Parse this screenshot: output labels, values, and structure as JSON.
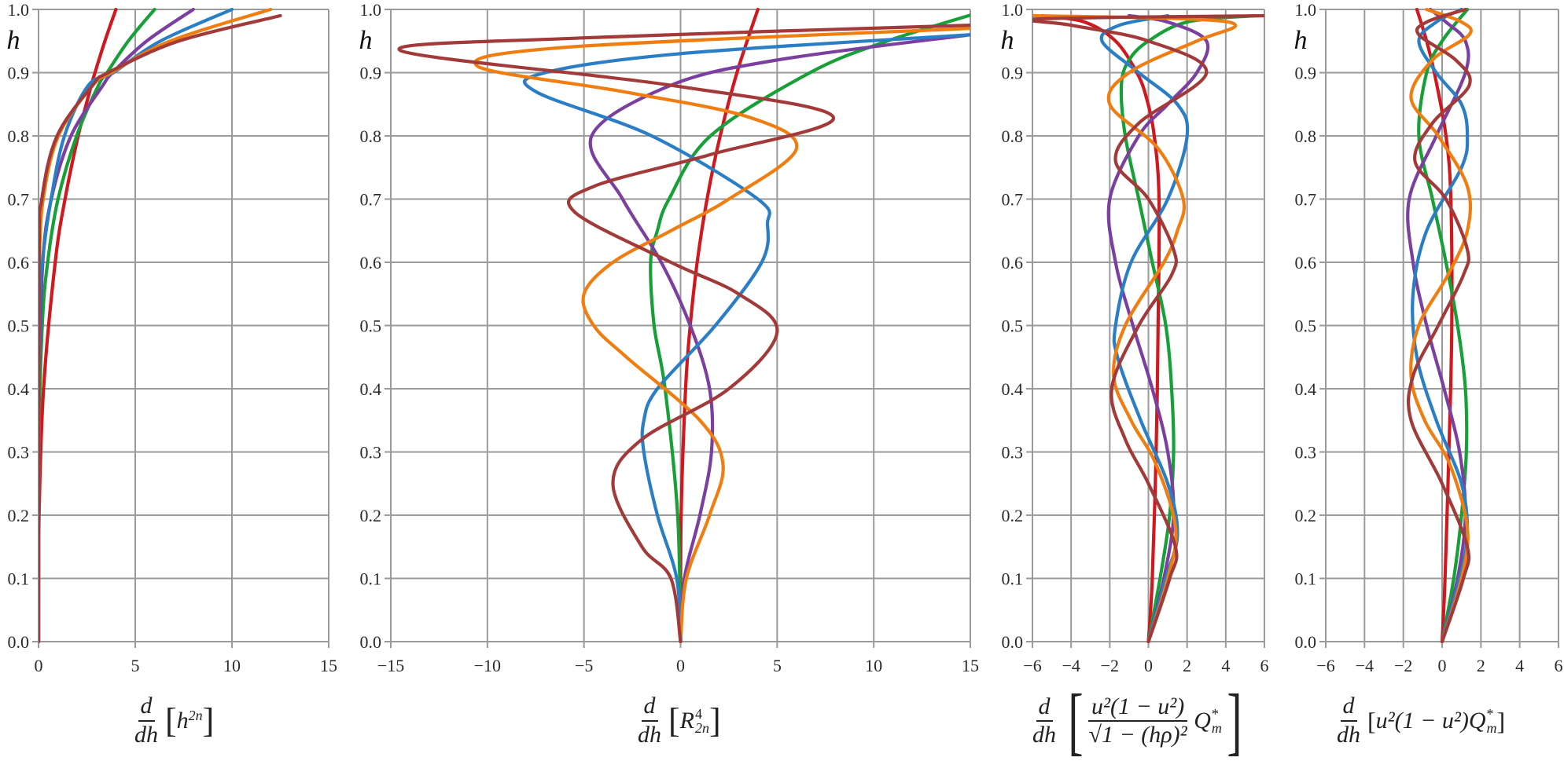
{
  "figure": {
    "y_axis_label": "h",
    "colors": {
      "red": "#d0191f",
      "green": "#18a038",
      "purple": "#7b3fa0",
      "blue": "#2a7ec6",
      "orange": "#f07d10",
      "brown": "#a33a3a"
    },
    "series_order": [
      "red",
      "green",
      "purple",
      "blue",
      "orange",
      "brown"
    ]
  },
  "panels": [
    {
      "id": "p1",
      "xlabel": {
        "numerator": "d",
        "denominator": "dh",
        "body": "h",
        "sup": "2n"
      },
      "x_ticks": [
        "0",
        "5",
        "10",
        "15"
      ],
      "y_ticks": [
        "0.0",
        "0.1",
        "0.2",
        "0.3",
        "0.4",
        "0.5",
        "0.6",
        "0.7",
        "0.8",
        "0.9",
        "1.0"
      ]
    },
    {
      "id": "p2",
      "xlabel": {
        "numerator": "d",
        "denominator": "dh",
        "body": "R",
        "sup": "4",
        "sub": "2n"
      },
      "x_ticks": [
        "−15",
        "−10",
        "−5",
        "0",
        "5",
        "10",
        "15"
      ],
      "y_ticks": [
        "0.0",
        "0.1",
        "0.2",
        "0.3",
        "0.4",
        "0.5",
        "0.6",
        "0.7",
        "0.8",
        "0.9",
        "1.0"
      ]
    },
    {
      "id": "p3",
      "xlabel": {
        "numerator": "d",
        "denominator": "dh",
        "inner_num": "u²(1 − u²)",
        "inner_den": "√1 − (hρ)²",
        "tail": "Q",
        "tail_sup": "*",
        "tail_sub": "m"
      },
      "x_ticks": [
        "−6",
        "−4",
        "−2",
        "0",
        "2",
        "4",
        "6"
      ],
      "y_ticks": [
        "0.0",
        "0.1",
        "0.2",
        "0.3",
        "0.4",
        "0.5",
        "0.6",
        "0.7",
        "0.8",
        "0.9",
        "1.0"
      ]
    },
    {
      "id": "p4",
      "xlabel": {
        "numerator": "d",
        "denominator": "dh",
        "body": "u²(1 − u²) ",
        "tail": "Q",
        "tail_sup": "*",
        "tail_sub": "m"
      },
      "x_ticks": [
        "−6",
        "−4",
        "−2",
        "0",
        "2",
        "4",
        "6"
      ],
      "y_ticks": [
        "0.0",
        "0.1",
        "0.2",
        "0.3",
        "0.4",
        "0.5",
        "0.6",
        "0.7",
        "0.8",
        "0.9",
        "1.0"
      ]
    }
  ],
  "chart_data": [
    {
      "type": "line",
      "title": "",
      "xlabel": "d/dh [h^{2n}]",
      "ylabel": "h",
      "xlim": [
        0,
        15
      ],
      "ylim": [
        0,
        1
      ],
      "grid": true,
      "orientation": "x = f(h)",
      "series": [
        {
          "name": "red",
          "h": [
            0,
            0.2,
            0.4,
            0.6,
            0.7,
            0.8,
            0.88,
            0.9,
            0.95,
            1.0
          ],
          "x": [
            0,
            0.03,
            0.26,
            0.86,
            1.37,
            2.05,
            2.73,
            2.92,
            3.43,
            4.0
          ]
        },
        {
          "name": "green",
          "h": [
            0,
            0.3,
            0.5,
            0.6,
            0.7,
            0.8,
            0.88,
            0.9,
            0.95,
            1.0
          ],
          "x": [
            0,
            0.01,
            0.19,
            0.47,
            1.01,
            1.97,
            3.1,
            3.54,
            4.64,
            6.0
          ]
        },
        {
          "name": "purple",
          "h": [
            0,
            0.4,
            0.6,
            0.7,
            0.8,
            0.88,
            0.9,
            0.95,
            1.0
          ],
          "x": [
            0,
            0.03,
            0.22,
            0.66,
            1.68,
            3.33,
            3.83,
            5.59,
            8.0
          ]
        },
        {
          "name": "blue",
          "h": [
            0,
            0.5,
            0.6,
            0.7,
            0.8,
            0.88,
            0.9,
            0.95,
            1.0
          ],
          "x": [
            0,
            0.04,
            0.2,
            0.65,
            1.34,
            2.58,
            3.87,
            6.3,
            10.0
          ]
        },
        {
          "name": "orange",
          "h": [
            0,
            0.5,
            0.6,
            0.7,
            0.8,
            0.88,
            0.9,
            0.95,
            1.0
          ],
          "x": [
            0,
            0.01,
            0.04,
            0.24,
            1.03,
            2.8,
            3.77,
            6.8,
            12.0
          ]
        },
        {
          "name": "brown",
          "h": [
            0,
            0.6,
            0.7,
            0.8,
            0.88,
            0.9,
            0.95,
            0.99
          ],
          "x": [
            0,
            0.03,
            0.17,
            0.96,
            2.8,
            3.6,
            7.25,
            12.5
          ]
        }
      ]
    },
    {
      "type": "line",
      "title": "",
      "xlabel": "d/dh [R^4_{2n}]",
      "ylabel": "h",
      "xlim": [
        -15,
        15
      ],
      "ylim": [
        0,
        1
      ],
      "grid": true,
      "orientation": "x = f(h)",
      "series": [
        {
          "name": "red",
          "h": [
            0,
            0.2,
            0.4,
            0.5,
            0.6,
            0.7,
            0.8,
            0.9,
            1.0
          ],
          "x": [
            0,
            0.03,
            0.26,
            0.5,
            0.86,
            1.37,
            2.05,
            2.92,
            4.0
          ]
        },
        {
          "name": "green",
          "h": [
            0,
            0.2,
            0.4,
            0.5,
            0.6,
            0.65,
            0.7,
            0.8,
            0.9,
            0.95,
            1.0
          ],
          "x": [
            0,
            -0.15,
            -0.8,
            -1.37,
            -1.55,
            -1.2,
            -0.6,
            1.55,
            6.7,
            10.7,
            16.0
          ]
        },
        {
          "name": "purple",
          "h": [
            0,
            0.1,
            0.2,
            0.3,
            0.4,
            0.5,
            0.6,
            0.7,
            0.8,
            0.88,
            0.92,
            0.96
          ],
          "x": [
            0,
            0.2,
            1.0,
            1.6,
            1.5,
            0.5,
            -1.0,
            -3.0,
            -4.6,
            -0.5,
            5.0,
            15.0
          ]
        },
        {
          "name": "blue",
          "h": [
            0,
            0.1,
            0.2,
            0.3,
            0.35,
            0.4,
            0.5,
            0.6,
            0.66,
            0.7,
            0.8,
            0.87,
            0.9,
            0.93,
            0.96
          ],
          "x": [
            0,
            -0.2,
            -1.2,
            -1.9,
            -1.9,
            -1.2,
            1.8,
            4.2,
            4.5,
            4.0,
            -1.5,
            -7.5,
            -7.0,
            0.0,
            15.0
          ]
        },
        {
          "name": "orange",
          "h": [
            0,
            0.1,
            0.2,
            0.28,
            0.35,
            0.45,
            0.5,
            0.55,
            0.6,
            0.65,
            0.7,
            0.78,
            0.83,
            0.87,
            0.91,
            0.94,
            0.97
          ],
          "x": [
            0,
            0.3,
            1.5,
            2.2,
            1.0,
            -2.8,
            -4.5,
            -5.0,
            -3.5,
            -0.5,
            2.5,
            6.0,
            3.5,
            -3.0,
            -10.5,
            -6.0,
            15.0
          ]
        },
        {
          "name": "brown",
          "h": [
            0,
            0.1,
            0.15,
            0.25,
            0.32,
            0.4,
            0.49,
            0.55,
            0.6,
            0.68,
            0.72,
            0.77,
            0.83,
            0.88,
            0.935,
            0.955,
            0.975
          ],
          "x": [
            0,
            -0.5,
            -2.0,
            -3.5,
            -2.0,
            2.5,
            5.0,
            3.0,
            -0.5,
            -5.5,
            -4.5,
            1.5,
            7.9,
            -0.5,
            -14.5,
            -5.0,
            15.0
          ]
        }
      ]
    },
    {
      "type": "line",
      "title": "",
      "xlabel": "d/dh [u^2(1-u^2)/sqrt(1-(h rho)^2) Q*_m]",
      "ylabel": "h",
      "xlim": [
        -6,
        6
      ],
      "ylim": [
        0,
        1
      ],
      "grid": true,
      "orientation": "x = f(h)",
      "series": [
        {
          "name": "red",
          "h": [
            0,
            0.1,
            0.3,
            0.5,
            0.7,
            0.8,
            0.86,
            0.9,
            0.95,
            0.98,
            0.99
          ],
          "x": [
            0,
            0.2,
            0.4,
            0.5,
            0.55,
            0.3,
            -0.1,
            -0.6,
            -1.7,
            -3.3,
            -5.5
          ]
        },
        {
          "name": "green",
          "h": [
            0,
            0.1,
            0.2,
            0.3,
            0.4,
            0.5,
            0.6,
            0.7,
            0.8,
            0.88,
            0.92,
            0.95,
            0.98,
            0.99
          ],
          "x": [
            0,
            0.6,
            1.1,
            1.3,
            1.2,
            0.9,
            0.2,
            -0.5,
            -1.2,
            -1.4,
            -1.0,
            0.0,
            2.0,
            5.5
          ]
        },
        {
          "name": "purple",
          "h": [
            0,
            0.1,
            0.2,
            0.3,
            0.4,
            0.5,
            0.6,
            0.7,
            0.8,
            0.85,
            0.9,
            0.95,
            0.98,
            0.99
          ],
          "x": [
            0,
            0.8,
            1.3,
            1.0,
            0.2,
            -0.8,
            -1.7,
            -2.0,
            -0.5,
            1.0,
            2.5,
            3.0,
            1.0,
            -1.0
          ]
        },
        {
          "name": "blue",
          "h": [
            0,
            0.1,
            0.17,
            0.25,
            0.35,
            0.45,
            0.5,
            0.6,
            0.7,
            0.8,
            0.85,
            0.9,
            0.95,
            0.975,
            0.99
          ],
          "x": [
            0,
            0.9,
            1.5,
            1.0,
            -0.4,
            -1.6,
            -1.7,
            -0.9,
            1.0,
            2.0,
            1.5,
            -0.5,
            -2.4,
            -1.5,
            1.0
          ]
        },
        {
          "name": "orange",
          "h": [
            0,
            0.1,
            0.18,
            0.28,
            0.35,
            0.42,
            0.5,
            0.6,
            0.65,
            0.7,
            0.78,
            0.85,
            0.9,
            0.95,
            0.975,
            0.985,
            0.99
          ],
          "x": [
            0,
            1.0,
            1.4,
            0.4,
            -0.9,
            -1.8,
            -1.2,
            0.8,
            1.5,
            1.8,
            0.5,
            -2.0,
            -1.0,
            2.5,
            4.5,
            2.0,
            -6.0
          ]
        },
        {
          "name": "brown",
          "h": [
            0,
            0.1,
            0.15,
            0.25,
            0.32,
            0.4,
            0.5,
            0.58,
            0.62,
            0.7,
            0.76,
            0.82,
            0.9,
            0.95,
            0.975,
            0.985,
            0.99
          ],
          "x": [
            0,
            1.1,
            1.4,
            0.0,
            -1.2,
            -1.9,
            -0.5,
            1.2,
            1.3,
            0.0,
            -1.7,
            -0.5,
            3.0,
            0.0,
            -4.0,
            -5.7,
            6.0
          ]
        }
      ]
    },
    {
      "type": "line",
      "title": "",
      "xlabel": "d/dh [u^2(1-u^2) Q*_m]",
      "ylabel": "h",
      "xlim": [
        -6,
        6
      ],
      "ylim": [
        0,
        1
      ],
      "grid": true,
      "orientation": "x = f(h)",
      "series": [
        {
          "name": "red",
          "h": [
            0,
            0.1,
            0.3,
            0.5,
            0.7,
            0.8,
            0.9,
            0.95,
            1.0
          ],
          "x": [
            0,
            0.15,
            0.35,
            0.5,
            0.45,
            0.2,
            -0.4,
            -0.8,
            -1.3
          ]
        },
        {
          "name": "green",
          "h": [
            0,
            0.1,
            0.2,
            0.3,
            0.4,
            0.5,
            0.6,
            0.7,
            0.8,
            0.9,
            0.95,
            1.0
          ],
          "x": [
            0,
            0.6,
            1.0,
            1.25,
            1.2,
            0.8,
            0.2,
            -0.5,
            -1.2,
            -0.8,
            0.0,
            1.3
          ]
        },
        {
          "name": "purple",
          "h": [
            0,
            0.1,
            0.2,
            0.3,
            0.4,
            0.5,
            0.6,
            0.7,
            0.8,
            0.9,
            0.95,
            0.98,
            1.0
          ],
          "x": [
            0,
            0.8,
            1.2,
            0.9,
            0.1,
            -0.8,
            -1.5,
            -1.7,
            -0.3,
            1.2,
            1.2,
            0.2,
            -0.6
          ]
        },
        {
          "name": "blue",
          "h": [
            0,
            0.1,
            0.17,
            0.25,
            0.35,
            0.45,
            0.55,
            0.65,
            0.75,
            0.8,
            0.85,
            0.9,
            0.95,
            0.98,
            1.0
          ],
          "x": [
            0,
            0.9,
            1.3,
            1.0,
            -0.3,
            -1.3,
            -1.5,
            -0.8,
            1.0,
            1.3,
            1.0,
            -0.3,
            -1.2,
            -0.3,
            1.0
          ]
        },
        {
          "name": "orange",
          "h": [
            0,
            0.1,
            0.18,
            0.28,
            0.35,
            0.42,
            0.5,
            0.58,
            0.65,
            0.72,
            0.8,
            0.86,
            0.92,
            0.96,
            0.98,
            1.0
          ],
          "x": [
            0,
            1.0,
            1.3,
            0.4,
            -0.9,
            -1.6,
            -1.2,
            0.3,
            1.3,
            1.3,
            -0.2,
            -1.6,
            -0.5,
            1.4,
            1.0,
            -0.8
          ]
        },
        {
          "name": "brown",
          "h": [
            0,
            0.1,
            0.15,
            0.25,
            0.35,
            0.42,
            0.5,
            0.58,
            0.62,
            0.7,
            0.76,
            0.82,
            0.88,
            0.92,
            0.96,
            0.98,
            1.0
          ],
          "x": [
            0,
            1.1,
            1.3,
            0.0,
            -1.6,
            -1.5,
            -0.2,
            1.1,
            1.3,
            0.2,
            -1.4,
            -0.5,
            1.4,
            0.7,
            -1.2,
            -0.8,
            1.2
          ]
        }
      ]
    }
  ]
}
